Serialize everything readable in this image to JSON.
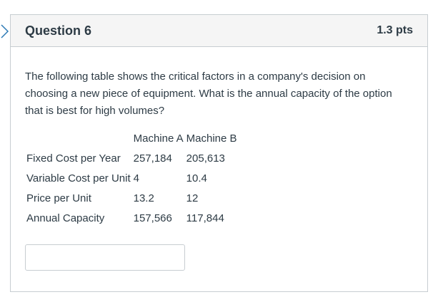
{
  "question": {
    "title": "Question 6",
    "points": "1.3 pts",
    "text": "The following table shows the critical factors in a company's decision on choosing a new piece of equipment.  What is the annual capacity of the option that is best for high volumes?"
  },
  "table": {
    "header": [
      "",
      "Machine A",
      "Machine B"
    ],
    "rows": [
      [
        "Fixed Cost per Year",
        "257,184",
        "205,613"
      ],
      [
        "Variable Cost per Unit",
        "4",
        "10.4"
      ],
      [
        "Price per Unit",
        "13.2",
        "12"
      ],
      [
        "Annual Capacity",
        "157,566",
        "117,844"
      ]
    ]
  },
  "answer": {
    "value": "",
    "placeholder": ""
  },
  "icons": {
    "pointer": "chevron-right-icon"
  },
  "colors": {
    "accent": "#2d7ab5",
    "border": "#c7cdd1",
    "header_bg": "#f5f5f5"
  }
}
